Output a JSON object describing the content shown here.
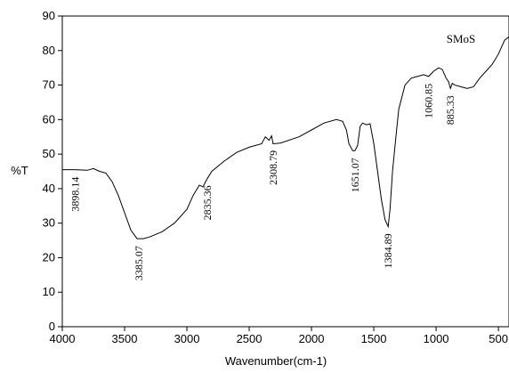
{
  "chart_data": {
    "type": "line",
    "xlabel": "Wavenumber(cm-1)",
    "ylabel": "%T",
    "xlim": [
      4000,
      415
    ],
    "ylim": [
      0,
      90
    ],
    "xticks": [
      4000,
      3500,
      3000,
      2500,
      2000,
      1500,
      1000,
      500
    ],
    "yticks": [
      0,
      10,
      20,
      30,
      40,
      50,
      60,
      70,
      80,
      90
    ],
    "series": [
      {
        "name": "SMoS",
        "color": "#000000",
        "x": [
          4000,
          3900,
          3800,
          3750,
          3700,
          3650,
          3600,
          3550,
          3500,
          3450,
          3400,
          3350,
          3300,
          3200,
          3100,
          3000,
          2950,
          2900,
          2870,
          2850,
          2835,
          2800,
          2700,
          2600,
          2500,
          2400,
          2370,
          2340,
          2320,
          2308,
          2250,
          2100,
          2000,
          1900,
          1800,
          1750,
          1720,
          1700,
          1670,
          1651,
          1630,
          1610,
          1590,
          1560,
          1530,
          1500,
          1470,
          1440,
          1410,
          1385,
          1370,
          1350,
          1320,
          1300,
          1250,
          1200,
          1150,
          1100,
          1060,
          1020,
          980,
          950,
          920,
          900,
          885,
          870,
          850,
          800,
          750,
          700,
          650,
          600,
          550,
          500,
          450,
          415
        ],
        "values": [
          45.5,
          45.5,
          45.3,
          45.8,
          45,
          44.5,
          42,
          38,
          33,
          28,
          25.5,
          25.5,
          26,
          27.5,
          30,
          34,
          38,
          41,
          40.5,
          42,
          43,
          45,
          48,
          50.5,
          52,
          53,
          55,
          54,
          55.3,
          53,
          53.2,
          55,
          57,
          59,
          60,
          59.5,
          57,
          53,
          51,
          51,
          52.5,
          58,
          59,
          58.5,
          58.8,
          53,
          45,
          37,
          31,
          29,
          34,
          45,
          56,
          63,
          70,
          72,
          72.5,
          73,
          72.5,
          74,
          75,
          74.5,
          72,
          71,
          69,
          70.5,
          70,
          69.5,
          69,
          69.5,
          72,
          74,
          76,
          79,
          83,
          84
        ]
      }
    ],
    "annotations": [
      "3898.14",
      "3385.07",
      "2835.36",
      "2308.79",
      "1651.07",
      "1384.89",
      "1060.85",
      "885.33"
    ]
  }
}
